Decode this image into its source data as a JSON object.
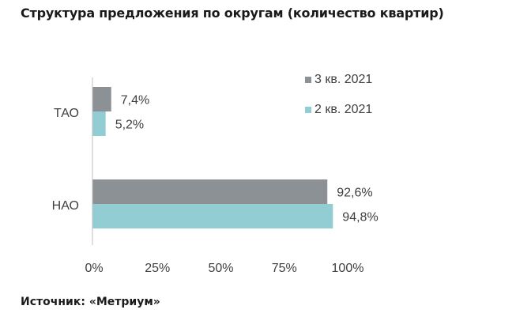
{
  "title": "Структура предложения по округам (количество квартир)",
  "source": "Источник: «Метриум»",
  "colors": {
    "series1": "#8C9196",
    "series2": "#92CDD4",
    "axis": "#bfbfbf",
    "text": "#404040"
  },
  "chart_data": {
    "type": "bar",
    "orientation": "horizontal",
    "categories": [
      "ТАО",
      "НАО"
    ],
    "series": [
      {
        "name": "3 кв. 2021",
        "values": [
          7.4,
          92.6
        ],
        "labels": [
          "7,4%",
          "92,6%"
        ]
      },
      {
        "name": "2 кв. 2021",
        "values": [
          5.2,
          94.8
        ],
        "labels": [
          "5,2%",
          "94,8%"
        ]
      }
    ],
    "xlim": [
      0,
      100
    ],
    "xticks": [
      "0%",
      "25%",
      "50%",
      "75%",
      "100%"
    ],
    "grid": false,
    "legend": "top-right"
  }
}
